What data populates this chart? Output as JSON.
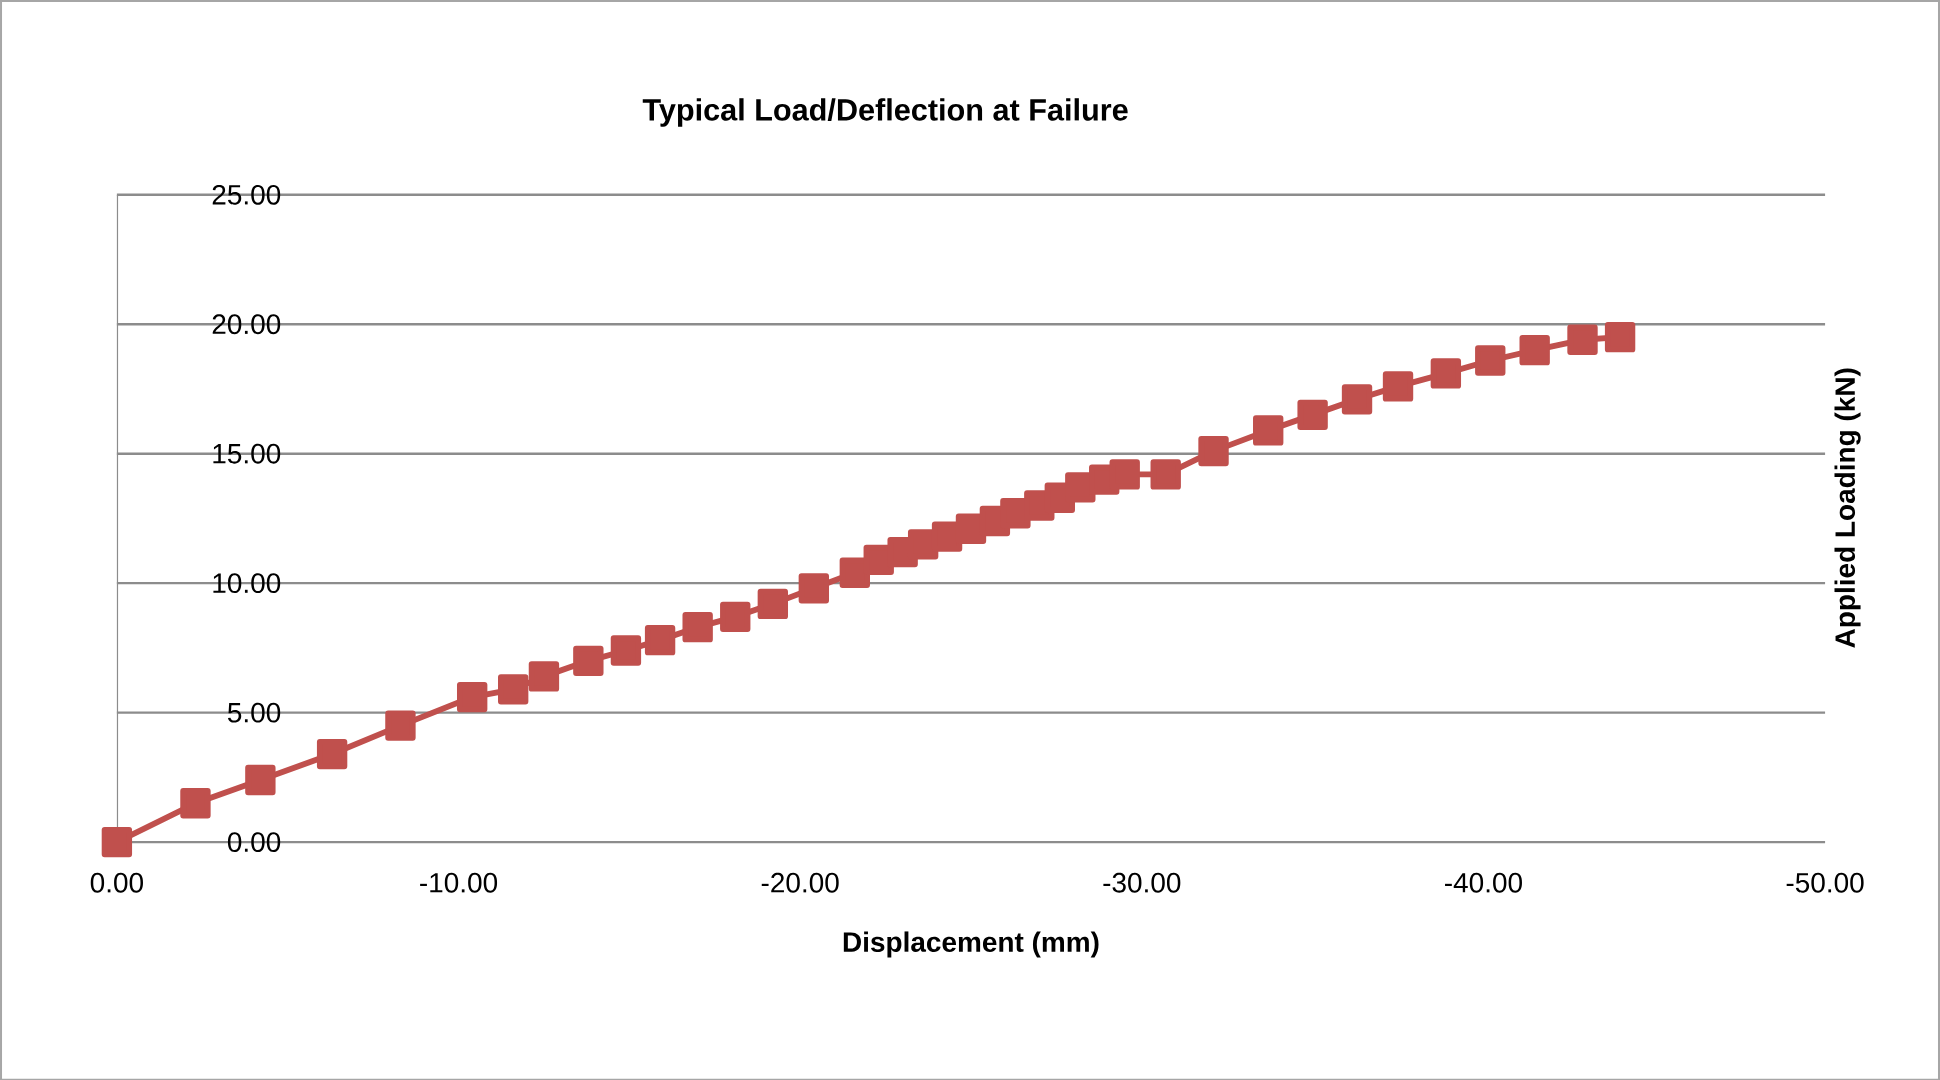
{
  "chart_data": {
    "type": "line",
    "title": "Typical Load/Deflection at Failure",
    "xlabel": "Displacement  (mm)",
    "ylabel": "Applied  Loading  (kN)",
    "series": [
      {
        "color": "#c0504d",
        "x": [
          0,
          -2.3,
          -4.2,
          -6.3,
          -8.3,
          -10.4,
          -11.6,
          -12.5,
          -13.8,
          -14.9,
          -15.9,
          -17.0,
          -18.1,
          -19.2,
          -20.4,
          -21.6,
          -22.3,
          -23.0,
          -23.6,
          -24.3,
          -25.0,
          -25.7,
          -26.3,
          -27.0,
          -27.6,
          -28.2,
          -28.9,
          -29.5,
          -30.7,
          -32.1,
          -33.7,
          -35.0,
          -36.3,
          -37.5,
          -38.9,
          -40.2,
          -41.5,
          -42.9,
          -44.0
        ],
        "values": [
          0,
          1.5,
          2.4,
          3.4,
          4.5,
          5.6,
          5.9,
          6.4,
          7.0,
          7.4,
          7.8,
          8.3,
          8.7,
          9.2,
          9.8,
          10.4,
          10.9,
          11.2,
          11.5,
          11.8,
          12.1,
          12.4,
          12.7,
          13.0,
          13.3,
          13.7,
          14.0,
          14.2,
          14.2,
          15.1,
          15.9,
          16.5,
          17.1,
          17.6,
          18.1,
          18.6,
          19.0,
          19.4,
          19.5
        ]
      }
    ],
    "xlim": [
      0,
      -50
    ],
    "ylim": [
      0,
      25
    ],
    "xticks": [
      {
        "value": 0,
        "label": "0.00"
      },
      {
        "value": -10,
        "label": "-10.00"
      },
      {
        "value": -20,
        "label": "-20.00"
      },
      {
        "value": -30,
        "label": "-30.00"
      },
      {
        "value": -40,
        "label": "-40.00"
      },
      {
        "value": -50,
        "label": "-50.00"
      }
    ],
    "yticks": [
      {
        "value": 0,
        "label": "0.00"
      },
      {
        "value": 5,
        "label": "5.00"
      },
      {
        "value": 10,
        "label": "10.00"
      },
      {
        "value": 15,
        "label": "15.00"
      },
      {
        "value": 20,
        "label": "20.00"
      },
      {
        "value": 25,
        "label": "25.00"
      }
    ],
    "grid": "y",
    "marker": "square",
    "line_style": "solid"
  }
}
